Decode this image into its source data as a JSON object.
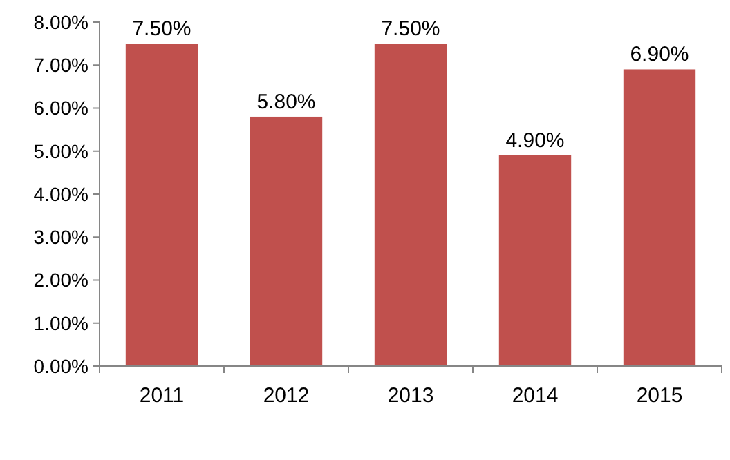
{
  "chart_data": {
    "type": "bar",
    "categories": [
      "2011",
      "2012",
      "2013",
      "2014",
      "2015"
    ],
    "values": [
      7.5,
      5.8,
      7.5,
      4.9,
      6.9
    ],
    "value_labels": [
      "7.50%",
      "5.80%",
      "7.50%",
      "4.90%",
      "6.90%"
    ],
    "color": "#c0504d",
    "ylim": [
      0,
      8
    ],
    "yticks": [
      {
        "value": 0,
        "label": "0.00%"
      },
      {
        "value": 1,
        "label": "1.00%"
      },
      {
        "value": 2,
        "label": "2.00%"
      },
      {
        "value": 3,
        "label": "3.00%"
      },
      {
        "value": 4,
        "label": "4.00%"
      },
      {
        "value": 5,
        "label": "5.00%"
      },
      {
        "value": 6,
        "label": "6.00%"
      },
      {
        "value": 7,
        "label": "7.00%"
      },
      {
        "value": 8,
        "label": "8.00%"
      }
    ],
    "grid": false
  }
}
